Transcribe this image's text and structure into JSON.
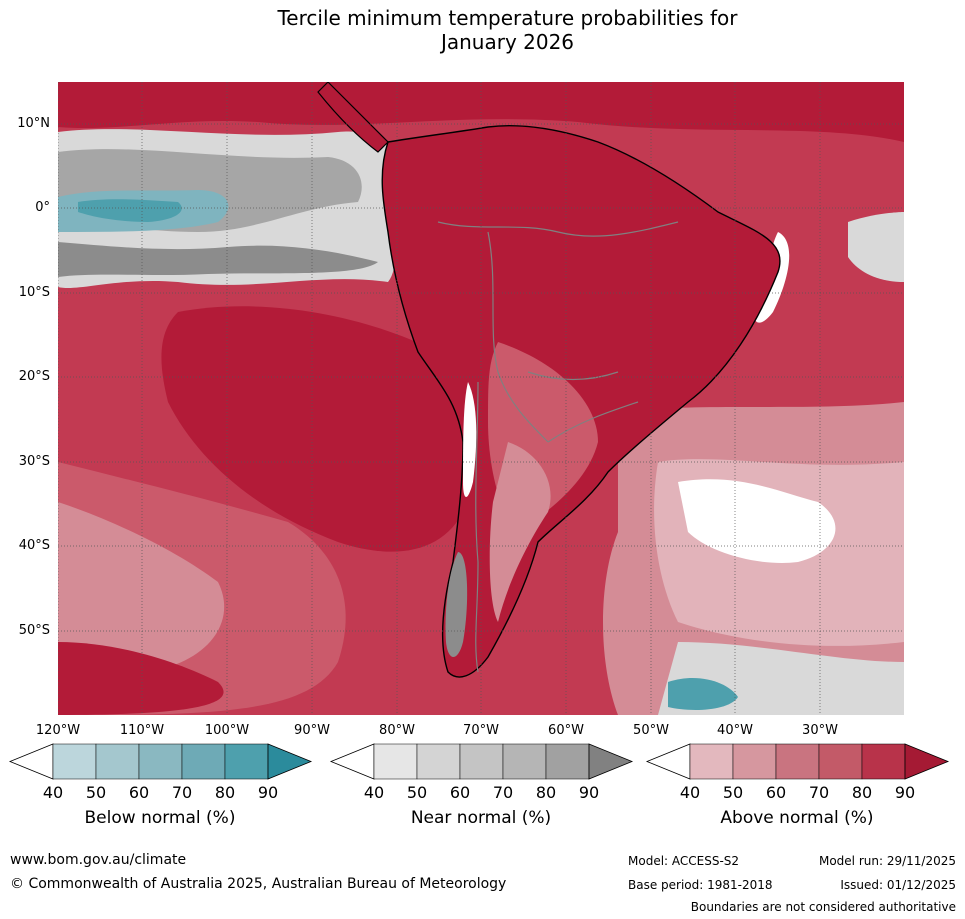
{
  "title_line1": "Tercile minimum temperature probabilities for",
  "title_line2": "January 2026",
  "lat_labels": [
    "10°N",
    "0°",
    "10°S",
    "20°S",
    "30°S",
    "40°S",
    "50°S"
  ],
  "lon_labels": [
    "120°W",
    "110°W",
    "100°W",
    "90°W",
    "80°W",
    "70°W",
    "60°W",
    "50°W",
    "40°W",
    "30°W"
  ],
  "colorbars": {
    "below": {
      "label": "Below normal (%)",
      "ticks": [
        "40",
        "50",
        "60",
        "70",
        "80",
        "90"
      ],
      "colors": [
        "#ffffff",
        "#bcd6dc",
        "#a4c7ce",
        "#8ab8c1",
        "#6eaab6",
        "#4ea0ad",
        "#2b8b9c"
      ]
    },
    "near": {
      "label": "Near normal (%)",
      "ticks": [
        "40",
        "50",
        "60",
        "70",
        "80",
        "90"
      ],
      "colors": [
        "#ffffff",
        "#e6e6e6",
        "#d4d4d4",
        "#c4c4c4",
        "#b5b5b5",
        "#a1a1a1",
        "#818181"
      ]
    },
    "above": {
      "label": "Above normal (%)",
      "ticks": [
        "40",
        "50",
        "60",
        "70",
        "80",
        "90"
      ],
      "colors": [
        "#ffffff",
        "#e3b8be",
        "#d6979f",
        "#c97480",
        "#c35a68",
        "#b8334a",
        "#a51a34"
      ]
    }
  },
  "footer": {
    "website": "www.bom.gov.au/climate",
    "copyright": "© Commonwealth of Australia 2025, Australian Bureau of Meteorology",
    "model": "Model: ACCESS-S2",
    "base_period": "Base period: 1981-2018",
    "model_run": "Model run: 29/11/2025",
    "issued": "Issued: 01/12/2025",
    "disclaimer": "Boundaries are not considered authoritative"
  },
  "map_colors": {
    "deep_red": "#b31b38",
    "red": "#c23a52",
    "mid_red": "#cb5a6b",
    "pink": "#d48c96",
    "light_pink": "#e2b3ba",
    "white": "#ffffff",
    "light_grey": "#d9d9d9",
    "grey": "#a6a6a6",
    "dark_grey": "#8c8c8c",
    "teal": "#4ea0ad",
    "light_teal": "#7fb4bf"
  }
}
